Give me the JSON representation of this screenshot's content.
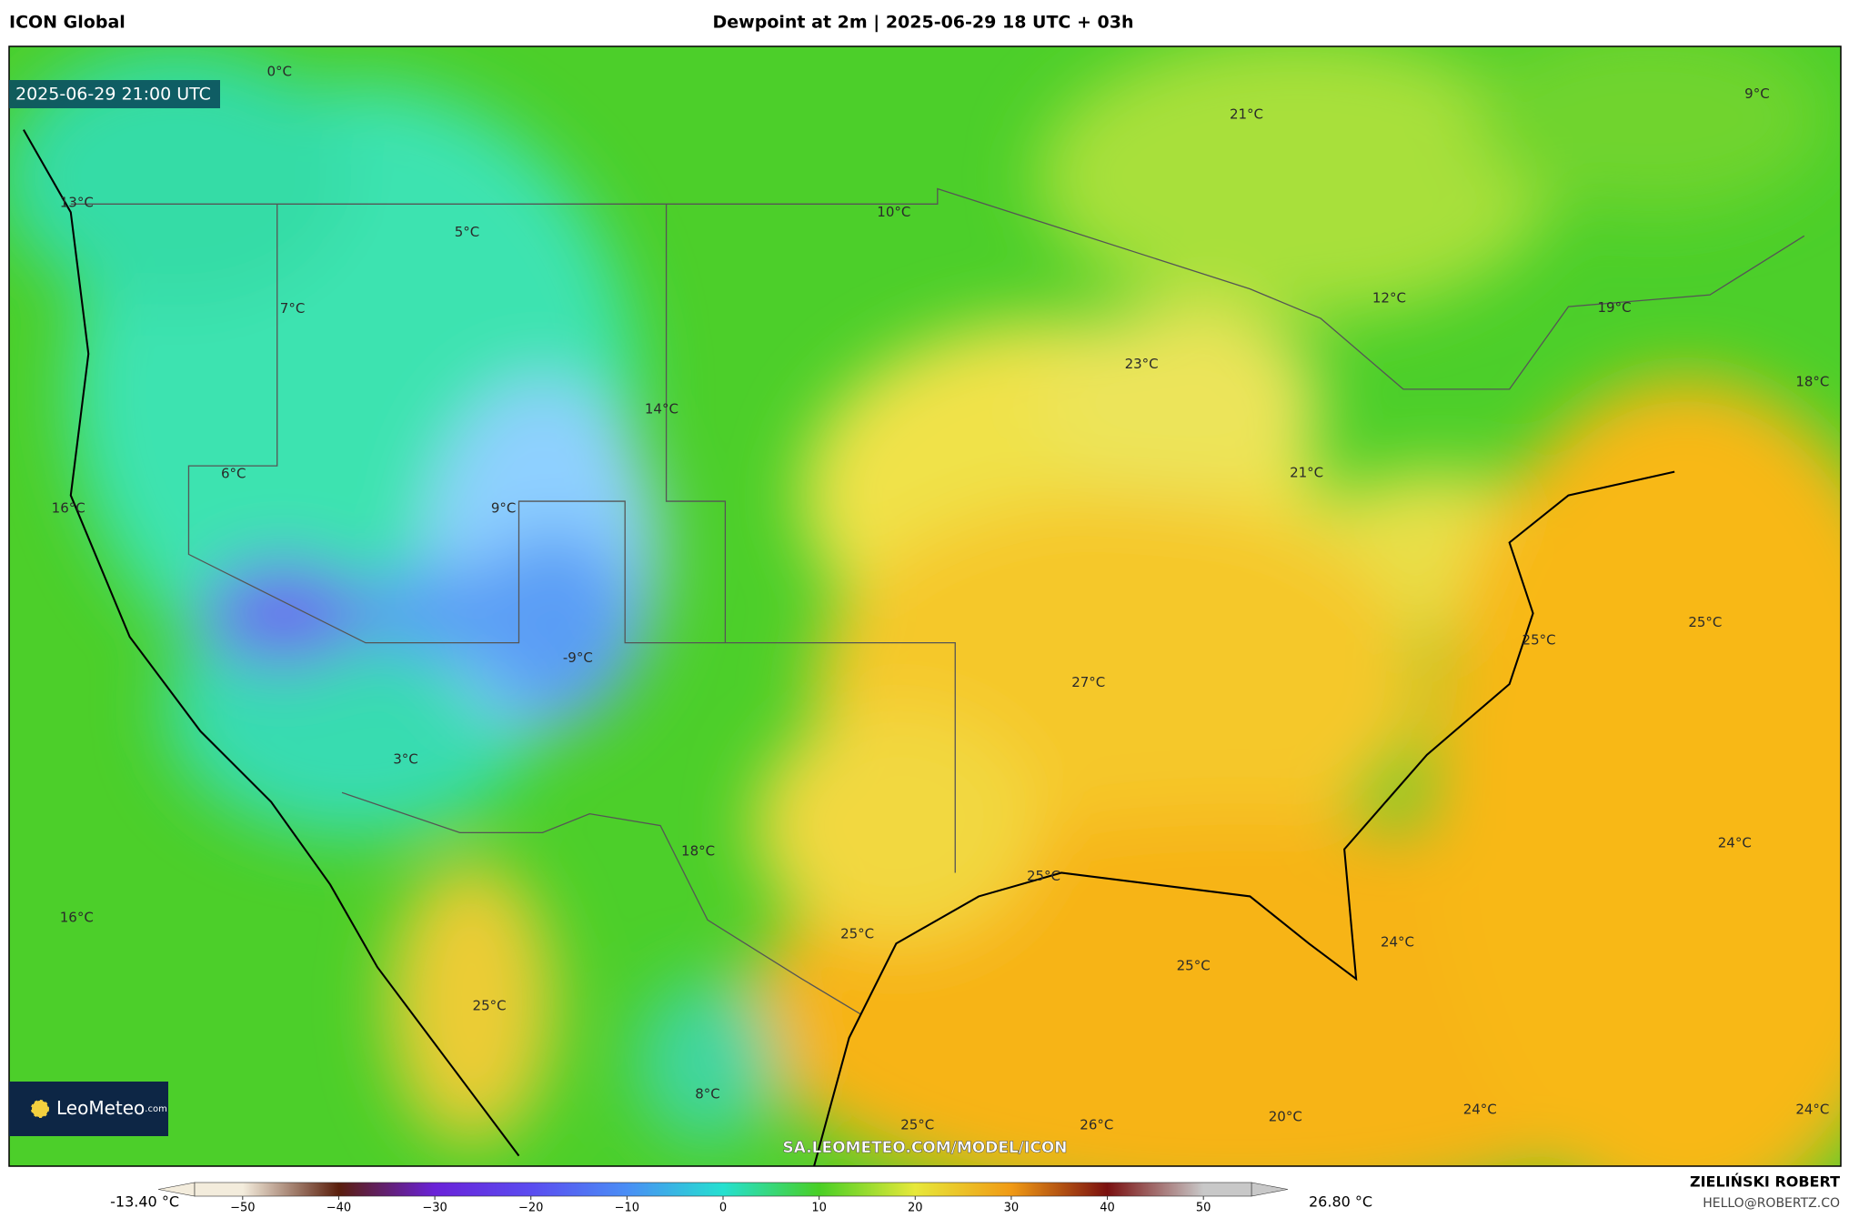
{
  "header": {
    "source": "ICON Global",
    "title": "Dewpoint at 2m | 2025-06-29 18 UTC + 03h"
  },
  "map": {
    "timestamp": "2025-06-29 21:00 UTC",
    "labels": [
      "0°C",
      "21°C",
      "9°C",
      "13°C",
      "10°C",
      "5°C",
      "12°C",
      "19°C",
      "7°C",
      "23°C",
      "18°C",
      "14°C",
      "21°C",
      "6°C",
      "16°C",
      "9°C",
      "25°C",
      "25°C",
      "-9°C",
      "27°C",
      "3°C",
      "24°C",
      "18°C",
      "25°C",
      "16°C",
      "25°C",
      "24°C",
      "25°C",
      "25°C",
      "8°C",
      "24°C",
      "24°C",
      "20°C",
      "25°C",
      "26°C"
    ],
    "watermark": "SA.LEOMETEO.COM/MODEL/ICON"
  },
  "logo": {
    "name": "LeoMeteo",
    "suffix": ".com"
  },
  "colorbar": {
    "min_label": "-13.40 °C",
    "max_label": "26.80 °C",
    "lim": [
      -55,
      55
    ],
    "ticks": [
      {
        "value": -50,
        "label": "−50"
      },
      {
        "value": -40,
        "label": "−40"
      },
      {
        "value": -30,
        "label": "−30"
      },
      {
        "value": -20,
        "label": "−20"
      },
      {
        "value": -10,
        "label": "−10"
      },
      0,
      10,
      20,
      30,
      40,
      50
    ],
    "colors": [
      "#f3ecdc",
      "#5a1e0c",
      "#6a22d8",
      "#5b4cf0",
      "#4a8ef5",
      "#25e0d0",
      "#49cf25",
      "#e7e83a",
      "#f09a15",
      "#7a1010",
      "#c8c8c8"
    ]
  },
  "footer": {
    "author": "ZIELIŃSKI ROBERT",
    "email": "HELLO@ROBERTZ.CO"
  }
}
